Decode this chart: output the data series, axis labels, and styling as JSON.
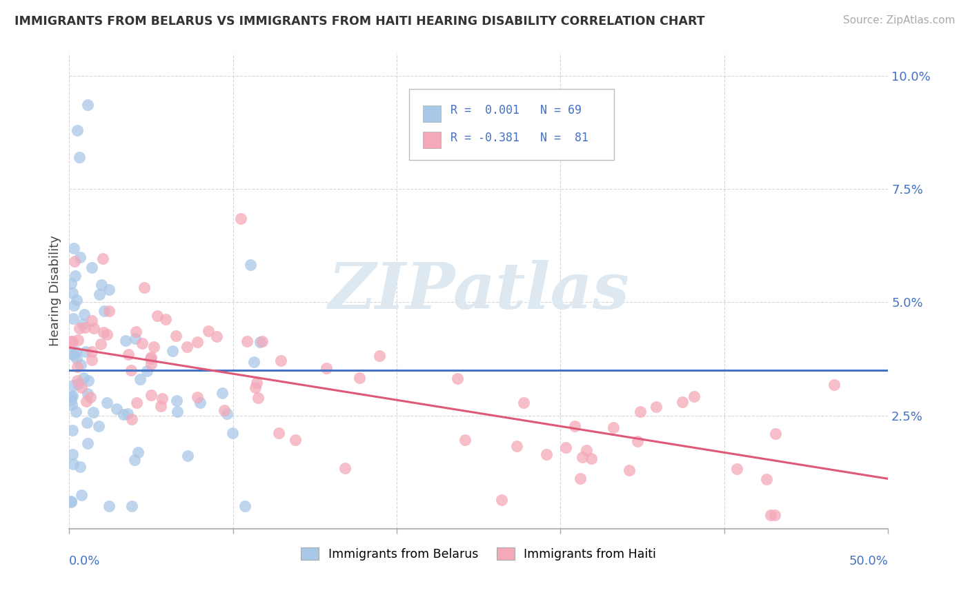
{
  "title": "IMMIGRANTS FROM BELARUS VS IMMIGRANTS FROM HAITI HEARING DISABILITY CORRELATION CHART",
  "source": "Source: ZipAtlas.com",
  "ylabel": "Hearing Disability",
  "belarus_color": "#a8c8e8",
  "haiti_color": "#f4a8b8",
  "belarus_line_color": "#4472c4",
  "haiti_line_color": "#e05878",
  "x_lim": [
    0.0,
    0.5
  ],
  "y_lim": [
    0.0,
    0.105
  ],
  "background_color": "#ffffff",
  "grid_color": "#cccccc",
  "watermark_color": "#dde8f0"
}
